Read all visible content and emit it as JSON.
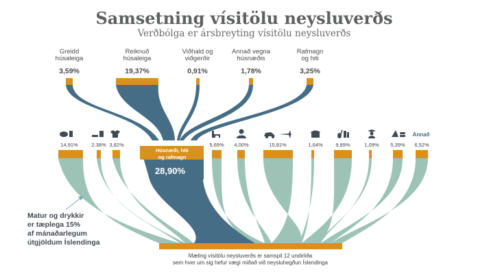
{
  "header": {
    "title": "Samsetning vísitölu neysluverðs",
    "subtitle": "Verðbólga er ársbreyting vísitölu neysluverðs"
  },
  "housing_components": [
    {
      "label_lines": [
        "Greidd",
        "húsaleiga"
      ],
      "value": "3,59%"
    },
    {
      "label_lines": [
        "Reiknuð",
        "húsaleiga"
      ],
      "value": "19,37%"
    },
    {
      "label_lines": [
        "Viðhald og",
        "viðgerðir"
      ],
      "value": "0,91%"
    },
    {
      "label_lines": [
        "Annað vegna",
        "húsnæðis"
      ],
      "value": "1,78%"
    },
    {
      "label_lines": [
        "Rafmagn",
        "og hiti"
      ],
      "value": "3,25%"
    }
  ],
  "housing_group": {
    "label_lines": [
      "Húsnæði, hiti",
      "og rafmagn"
    ],
    "value": "28,90%"
  },
  "categories": [
    {
      "icon": "food-icon",
      "value": "14,91%"
    },
    {
      "icon": "alcohol-tobacco-icon",
      "value": "2,38%"
    },
    {
      "icon": "clothing-icon",
      "value": "3,82%"
    },
    {
      "icon": "furniture-icon",
      "value": "5,69%"
    },
    {
      "icon": "health-icon",
      "value": "4,00%"
    },
    {
      "icon": "transport-icon",
      "value": "15,81%"
    },
    {
      "icon": "telephone-icon",
      "value": "1,64%"
    },
    {
      "icon": "recreation-icon",
      "value": "9,89%"
    },
    {
      "icon": "education-icon",
      "value": "1,09%"
    },
    {
      "icon": "restaurant-icon",
      "value": "5,39%"
    },
    {
      "icon": "other-icon",
      "value": "6,52%",
      "text": "Annað"
    }
  ],
  "note_lines": [
    "Matur og drykkir",
    "er tæplega 15%",
    "af mánaðarlegum",
    "útgjöldum Íslendinga"
  ],
  "footer_lines": [
    "Mæling vísitölu neysluverðs er samspil 12 undirliða",
    "sem hver um sig hefur vægi miðað við neysluhegðun Íslendinga"
  ],
  "colors": {
    "orange": "#d9901e",
    "dark_teal": "#456e86",
    "light_teal": "#9dc3b7",
    "text": "#4a4a4a"
  }
}
